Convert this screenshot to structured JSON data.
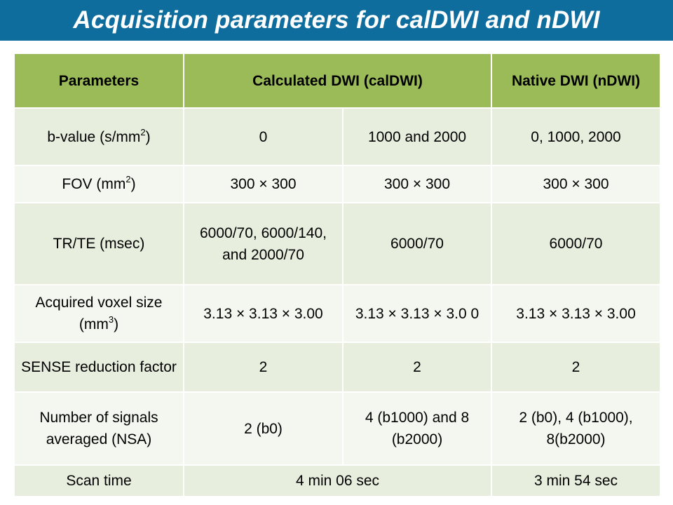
{
  "title": "Acquisition parameters for calDWI and nDWI",
  "colors": {
    "title_bar": "#0f6d9e",
    "header_row": "#9bbb59",
    "row_dark": "#e7eedd",
    "row_light": "#f4f7ef"
  },
  "table": {
    "header": {
      "parameters": "Parameters",
      "caldwi": "Calculated DWI (calDWI)",
      "ndwi": "Native DWI (nDWI)"
    },
    "rows": [
      {
        "label": "b-value (s/mm",
        "label_sup": "2",
        "label_after": ")",
        "c1": "0",
        "c2": "1000 and 2000",
        "c3": "0, 1000, 2000"
      },
      {
        "label": "FOV (mm",
        "label_sup": "2",
        "label_after": ")",
        "c1": "300 × 300",
        "c2": "300 × 300",
        "c3": "300 × 300"
      },
      {
        "label": "TR/TE (msec)",
        "c1": "6000/70, 6000/140, and 2000/70",
        "c2": "6000/70",
        "c3": "6000/70"
      },
      {
        "label": "Acquired voxel size (mm",
        "label_sup": "3",
        "label_after": ")",
        "c1": "3.13 × 3.13 × 3.00",
        "c2": "3.13 × 3.13 × 3.0 0",
        "c3": "3.13 × 3.13 × 3.00"
      },
      {
        "label": "SENSE reduction factor",
        "c1": "2",
        "c2": "2",
        "c3": "2"
      },
      {
        "label": "Number of signals averaged (NSA)",
        "c1": "2 (b0)",
        "c2": "4 (b1000) and 8 (b2000)",
        "c3": "2 (b0), 4 (b1000), 8(b2000)"
      },
      {
        "label": "Scan time",
        "c12": "4 min 06 sec",
        "c3": "3 min 54 sec"
      }
    ]
  }
}
